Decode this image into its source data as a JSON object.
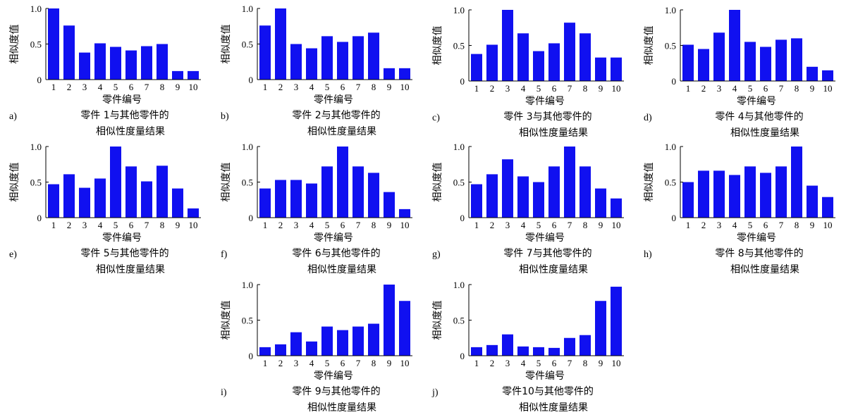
{
  "figure": {
    "colors": {
      "bar": "#1010f0",
      "axis": "#000000",
      "text": "#000000",
      "background": "#ffffff"
    }
  },
  "chart_data": [
    {
      "type": "bar",
      "label": "a)",
      "caption_line1": "零件 1与其他零件的",
      "caption_line2": "相似性度量结果",
      "xlabel": "零件编号",
      "ylabel": "相似度值",
      "categories": [
        "1",
        "2",
        "3",
        "4",
        "5",
        "6",
        "7",
        "8",
        "9",
        "10"
      ],
      "values": [
        1.0,
        0.76,
        0.38,
        0.51,
        0.46,
        0.41,
        0.47,
        0.5,
        0.12,
        0.12
      ],
      "yticks": [
        "0",
        "0.5",
        "1.0"
      ],
      "ylim": [
        0,
        1.0
      ],
      "grid": false
    },
    {
      "type": "bar",
      "label": "b)",
      "caption_line1": "零件 2与其他零件的",
      "caption_line2": "相似性度量结果",
      "xlabel": "零件编号",
      "ylabel": "相似度值",
      "categories": [
        "1",
        "2",
        "3",
        "4",
        "5",
        "6",
        "7",
        "8",
        "9",
        "10"
      ],
      "values": [
        0.76,
        1.0,
        0.5,
        0.44,
        0.61,
        0.53,
        0.61,
        0.66,
        0.16,
        0.16
      ],
      "yticks": [
        "0",
        "0.5",
        "1.0"
      ],
      "ylim": [
        0,
        1.0
      ],
      "grid": false
    },
    {
      "type": "bar",
      "label": "c)",
      "caption_line1": "零件 3与其他零件的",
      "caption_line2": "相似性度量结果",
      "xlabel": "零件编号",
      "ylabel": "相似度值",
      "categories": [
        "1",
        "2",
        "3",
        "4",
        "5",
        "6",
        "7",
        "8",
        "9",
        "10"
      ],
      "values": [
        0.38,
        0.51,
        1.0,
        0.67,
        0.42,
        0.53,
        0.82,
        0.67,
        0.33,
        0.33
      ],
      "yticks": [
        "0",
        "0.5",
        "1.0"
      ],
      "ylim": [
        0,
        1.0
      ],
      "grid": false
    },
    {
      "type": "bar",
      "label": "d)",
      "caption_line1": "零件 4与其他零件的",
      "caption_line2": "相似性度量结果",
      "xlabel": "零件编号",
      "ylabel": "相似度值",
      "categories": [
        "1",
        "2",
        "3",
        "4",
        "5",
        "6",
        "7",
        "8",
        "9",
        "10"
      ],
      "values": [
        0.51,
        0.45,
        0.68,
        1.0,
        0.55,
        0.48,
        0.58,
        0.6,
        0.2,
        0.15
      ],
      "yticks": [
        "0",
        "0.5",
        "1.0"
      ],
      "ylim": [
        0,
        1.0
      ],
      "grid": false
    },
    {
      "type": "bar",
      "label": "e)",
      "caption_line1": "零件 5与其他零件的",
      "caption_line2": "相似性度量结果",
      "xlabel": "零件编号",
      "ylabel": "相似度值",
      "categories": [
        "1",
        "2",
        "3",
        "4",
        "5",
        "6",
        "7",
        "8",
        "9",
        "10"
      ],
      "values": [
        0.47,
        0.61,
        0.42,
        0.55,
        1.0,
        0.72,
        0.51,
        0.73,
        0.41,
        0.13
      ],
      "yticks": [
        "0",
        "0.5",
        "1.0"
      ],
      "ylim": [
        0,
        1.0
      ],
      "grid": false
    },
    {
      "type": "bar",
      "label": "f)",
      "caption_line1": "零件 6与其他零件的",
      "caption_line2": "相似性度量结果",
      "xlabel": "零件编号",
      "ylabel": "相似度值",
      "categories": [
        "1",
        "2",
        "3",
        "4",
        "5",
        "6",
        "7",
        "8",
        "9",
        "10"
      ],
      "values": [
        0.41,
        0.53,
        0.53,
        0.48,
        0.72,
        1.0,
        0.72,
        0.63,
        0.36,
        0.12
      ],
      "yticks": [
        "0",
        "0.5",
        "1.0"
      ],
      "ylim": [
        0,
        1.0
      ],
      "grid": false
    },
    {
      "type": "bar",
      "label": "g)",
      "caption_line1": "零件 7与其他零件的",
      "caption_line2": "相似性度量结果",
      "xlabel": "零件编号",
      "ylabel": "相似度值",
      "categories": [
        "1",
        "2",
        "3",
        "4",
        "5",
        "6",
        "7",
        "8",
        "9",
        "10"
      ],
      "values": [
        0.47,
        0.61,
        0.82,
        0.58,
        0.5,
        0.72,
        1.0,
        0.72,
        0.41,
        0.27
      ],
      "yticks": [
        "0",
        "0.5",
        "1.0"
      ],
      "ylim": [
        0,
        1.0
      ],
      "grid": false
    },
    {
      "type": "bar",
      "label": "h)",
      "caption_line1": "零件 8与其他零件的",
      "caption_line2": "相似性度量结果",
      "xlabel": "零件编号",
      "ylabel": "相似度值",
      "categories": [
        "1",
        "2",
        "3",
        "4",
        "5",
        "6",
        "7",
        "8",
        "9",
        "10"
      ],
      "values": [
        0.5,
        0.66,
        0.66,
        0.6,
        0.72,
        0.63,
        0.72,
        1.0,
        0.45,
        0.29
      ],
      "yticks": [
        "0",
        "0.5",
        "1.0"
      ],
      "ylim": [
        0,
        1.0
      ],
      "grid": false
    },
    {
      "type": "bar",
      "label": "i)",
      "caption_line1": "零件 9与其他零件的",
      "caption_line2": "相似性度量结果",
      "xlabel": "零件编号",
      "ylabel": "相似度值",
      "categories": [
        "1",
        "2",
        "3",
        "4",
        "5",
        "6",
        "7",
        "8",
        "9",
        "10"
      ],
      "values": [
        0.12,
        0.16,
        0.33,
        0.2,
        0.41,
        0.36,
        0.41,
        0.45,
        1.0,
        0.77
      ],
      "yticks": [
        "0",
        "0.5",
        "1.0"
      ],
      "ylim": [
        0,
        1.0
      ],
      "grid": false
    },
    {
      "type": "bar",
      "label": "j)",
      "caption_line1": "零件10与其他零件的",
      "caption_line2": "相似性度量结果",
      "xlabel": "零件编号",
      "ylabel": "相似度值",
      "categories": [
        "1",
        "2",
        "3",
        "4",
        "5",
        "6",
        "7",
        "8",
        "9",
        "10"
      ],
      "values": [
        0.12,
        0.15,
        0.3,
        0.13,
        0.12,
        0.11,
        0.25,
        0.29,
        0.77,
        0.97
      ],
      "yticks": [
        "0",
        "0.5",
        "1.0"
      ],
      "ylim": [
        0,
        1.0
      ],
      "grid": false
    }
  ]
}
